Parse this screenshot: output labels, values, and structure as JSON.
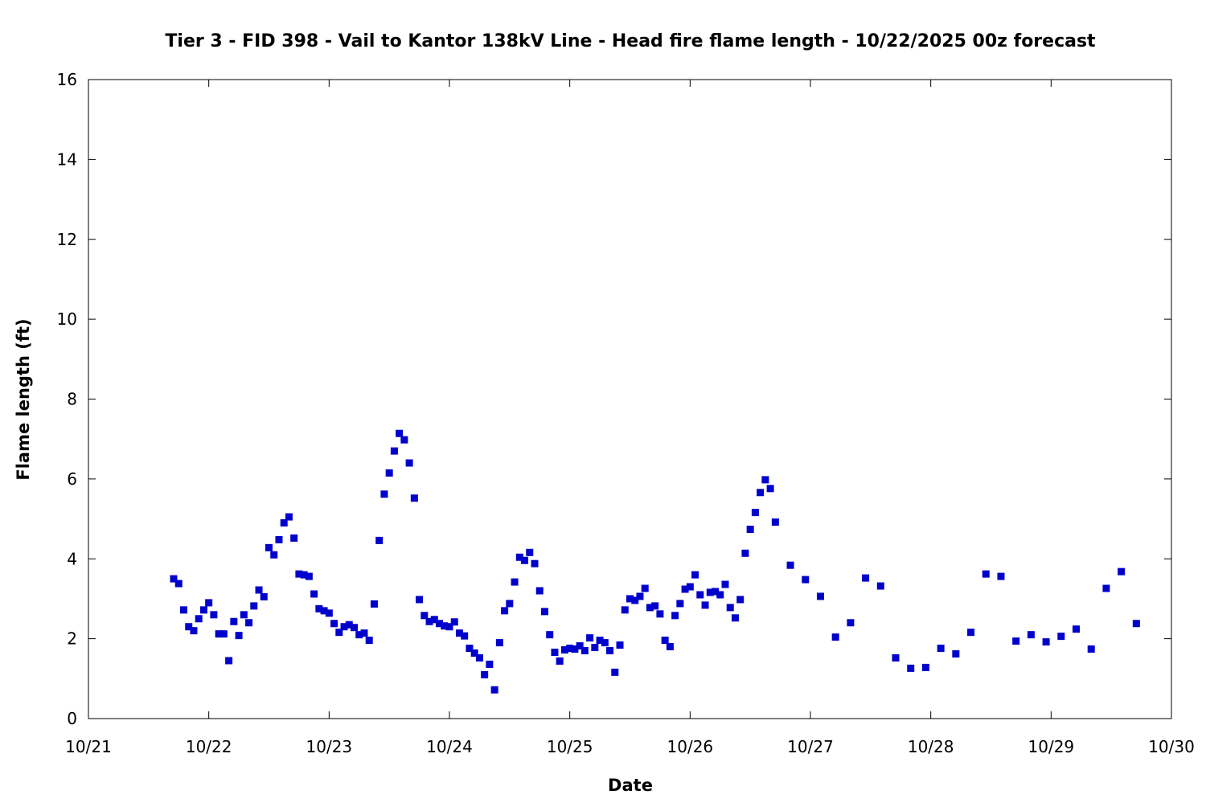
{
  "chart_data": {
    "type": "scatter",
    "title": "Tier 3 - FID 398 - Vail to Kantor 138kV Line - Head fire flame length - 10/22/2025 00z forecast",
    "xlabel": "Date",
    "ylabel": "Flame length (ft)",
    "xlim": [
      "2025-10-21 00:00",
      "2025-10-30 00:00"
    ],
    "ylim": [
      0,
      16
    ],
    "x_ticks": [
      "10/21",
      "10/22",
      "10/23",
      "10/24",
      "10/25",
      "10/26",
      "10/27",
      "10/28",
      "10/29",
      "10/30"
    ],
    "y_ticks": [
      0,
      2,
      4,
      6,
      8,
      10,
      12,
      14,
      16
    ],
    "grid": false,
    "legend": "none",
    "marker_color": "#0000cc",
    "marker": "square",
    "series": [
      {
        "points": [
          [
            "2025-10-21 17:00",
            3.5
          ],
          [
            "2025-10-21 18:00",
            3.38
          ],
          [
            "2025-10-21 19:00",
            2.72
          ],
          [
            "2025-10-21 20:00",
            2.3
          ],
          [
            "2025-10-21 21:00",
            2.2
          ],
          [
            "2025-10-21 22:00",
            2.5
          ],
          [
            "2025-10-21 23:00",
            2.72
          ],
          [
            "2025-10-22 00:00",
            2.9
          ],
          [
            "2025-10-22 01:00",
            2.6
          ],
          [
            "2025-10-22 02:00",
            2.12
          ],
          [
            "2025-10-22 03:00",
            2.12
          ],
          [
            "2025-10-22 04:00",
            1.45
          ],
          [
            "2025-10-22 05:00",
            2.43
          ],
          [
            "2025-10-22 06:00",
            2.08
          ],
          [
            "2025-10-22 07:00",
            2.6
          ],
          [
            "2025-10-22 08:00",
            2.4
          ],
          [
            "2025-10-22 09:00",
            2.82
          ],
          [
            "2025-10-22 10:00",
            3.22
          ],
          [
            "2025-10-22 11:00",
            3.05
          ],
          [
            "2025-10-22 12:00",
            4.28
          ],
          [
            "2025-10-22 13:00",
            4.1
          ],
          [
            "2025-10-22 14:00",
            4.48
          ],
          [
            "2025-10-22 15:00",
            4.9
          ],
          [
            "2025-10-22 16:00",
            5.05
          ],
          [
            "2025-10-22 17:00",
            4.52
          ],
          [
            "2025-10-22 18:00",
            3.62
          ],
          [
            "2025-10-22 19:00",
            3.6
          ],
          [
            "2025-10-22 20:00",
            3.56
          ],
          [
            "2025-10-22 21:00",
            3.12
          ],
          [
            "2025-10-22 22:00",
            2.75
          ],
          [
            "2025-10-22 23:00",
            2.7
          ],
          [
            "2025-10-23 00:00",
            2.64
          ],
          [
            "2025-10-23 01:00",
            2.38
          ],
          [
            "2025-10-23 02:00",
            2.16
          ],
          [
            "2025-10-23 03:00",
            2.3
          ],
          [
            "2025-10-23 04:00",
            2.35
          ],
          [
            "2025-10-23 05:00",
            2.28
          ],
          [
            "2025-10-23 06:00",
            2.1
          ],
          [
            "2025-10-23 07:00",
            2.14
          ],
          [
            "2025-10-23 08:00",
            1.96
          ],
          [
            "2025-10-23 09:00",
            2.87
          ],
          [
            "2025-10-23 10:00",
            4.46
          ],
          [
            "2025-10-23 11:00",
            5.62
          ],
          [
            "2025-10-23 12:00",
            6.15
          ],
          [
            "2025-10-23 13:00",
            6.7
          ],
          [
            "2025-10-23 14:00",
            7.14
          ],
          [
            "2025-10-23 15:00",
            6.98
          ],
          [
            "2025-10-23 16:00",
            6.4
          ],
          [
            "2025-10-23 17:00",
            5.52
          ],
          [
            "2025-10-23 18:00",
            2.98
          ],
          [
            "2025-10-23 19:00",
            2.58
          ],
          [
            "2025-10-23 20:00",
            2.43
          ],
          [
            "2025-10-23 21:00",
            2.48
          ],
          [
            "2025-10-23 22:00",
            2.38
          ],
          [
            "2025-10-23 23:00",
            2.32
          ],
          [
            "2025-10-24 00:00",
            2.3
          ],
          [
            "2025-10-24 01:00",
            2.42
          ],
          [
            "2025-10-24 02:00",
            2.14
          ],
          [
            "2025-10-24 03:00",
            2.07
          ],
          [
            "2025-10-24 04:00",
            1.76
          ],
          [
            "2025-10-24 05:00",
            1.64
          ],
          [
            "2025-10-24 06:00",
            1.52
          ],
          [
            "2025-10-24 07:00",
            1.1
          ],
          [
            "2025-10-24 08:00",
            1.36
          ],
          [
            "2025-10-24 09:00",
            0.72
          ],
          [
            "2025-10-24 10:00",
            1.9
          ],
          [
            "2025-10-24 11:00",
            2.7
          ],
          [
            "2025-10-24 12:00",
            2.88
          ],
          [
            "2025-10-24 13:00",
            3.42
          ],
          [
            "2025-10-24 14:00",
            4.04
          ],
          [
            "2025-10-24 15:00",
            3.96
          ],
          [
            "2025-10-24 16:00",
            4.16
          ],
          [
            "2025-10-24 17:00",
            3.88
          ],
          [
            "2025-10-24 18:00",
            3.2
          ],
          [
            "2025-10-24 19:00",
            2.68
          ],
          [
            "2025-10-24 20:00",
            2.1
          ],
          [
            "2025-10-24 21:00",
            1.66
          ],
          [
            "2025-10-24 22:00",
            1.44
          ],
          [
            "2025-10-24 23:00",
            1.72
          ],
          [
            "2025-10-25 00:00",
            1.76
          ],
          [
            "2025-10-25 01:00",
            1.74
          ],
          [
            "2025-10-25 02:00",
            1.82
          ],
          [
            "2025-10-25 03:00",
            1.7
          ],
          [
            "2025-10-25 04:00",
            2.02
          ],
          [
            "2025-10-25 05:00",
            1.78
          ],
          [
            "2025-10-25 06:00",
            1.96
          ],
          [
            "2025-10-25 07:00",
            1.9
          ],
          [
            "2025-10-25 08:00",
            1.7
          ],
          [
            "2025-10-25 09:00",
            1.16
          ],
          [
            "2025-10-25 10:00",
            1.84
          ],
          [
            "2025-10-25 11:00",
            2.72
          ],
          [
            "2025-10-25 12:00",
            3.0
          ],
          [
            "2025-10-25 13:00",
            2.96
          ],
          [
            "2025-10-25 14:00",
            3.06
          ],
          [
            "2025-10-25 15:00",
            3.26
          ],
          [
            "2025-10-25 16:00",
            2.78
          ],
          [
            "2025-10-25 17:00",
            2.82
          ],
          [
            "2025-10-25 18:00",
            2.62
          ],
          [
            "2025-10-25 19:00",
            1.96
          ],
          [
            "2025-10-25 20:00",
            1.8
          ],
          [
            "2025-10-25 21:00",
            2.58
          ],
          [
            "2025-10-25 22:00",
            2.88
          ],
          [
            "2025-10-25 23:00",
            3.24
          ],
          [
            "2025-10-26 00:00",
            3.3
          ],
          [
            "2025-10-26 01:00",
            3.6
          ],
          [
            "2025-10-26 02:00",
            3.1
          ],
          [
            "2025-10-26 03:00",
            2.84
          ],
          [
            "2025-10-26 04:00",
            3.16
          ],
          [
            "2025-10-26 05:00",
            3.18
          ],
          [
            "2025-10-26 06:00",
            3.1
          ],
          [
            "2025-10-26 07:00",
            3.36
          ],
          [
            "2025-10-26 08:00",
            2.78
          ],
          [
            "2025-10-26 09:00",
            2.52
          ],
          [
            "2025-10-26 10:00",
            2.98
          ],
          [
            "2025-10-26 11:00",
            4.14
          ],
          [
            "2025-10-26 12:00",
            4.74
          ],
          [
            "2025-10-26 13:00",
            5.16
          ],
          [
            "2025-10-26 14:00",
            5.66
          ],
          [
            "2025-10-26 15:00",
            5.98
          ],
          [
            "2025-10-26 16:00",
            5.76
          ],
          [
            "2025-10-26 17:00",
            4.92
          ],
          [
            "2025-10-26 20:00",
            3.84
          ],
          [
            "2025-10-26 23:00",
            3.48
          ],
          [
            "2025-10-27 02:00",
            3.06
          ],
          [
            "2025-10-27 05:00",
            2.04
          ],
          [
            "2025-10-27 08:00",
            2.4
          ],
          [
            "2025-10-27 11:00",
            3.52
          ],
          [
            "2025-10-27 14:00",
            3.32
          ],
          [
            "2025-10-27 17:00",
            1.52
          ],
          [
            "2025-10-27 20:00",
            1.26
          ],
          [
            "2025-10-27 23:00",
            1.28
          ],
          [
            "2025-10-28 02:00",
            1.76
          ],
          [
            "2025-10-28 05:00",
            1.62
          ],
          [
            "2025-10-28 08:00",
            2.16
          ],
          [
            "2025-10-28 11:00",
            3.62
          ],
          [
            "2025-10-28 14:00",
            3.56
          ],
          [
            "2025-10-28 17:00",
            1.94
          ],
          [
            "2025-10-28 20:00",
            2.1
          ],
          [
            "2025-10-28 23:00",
            1.92
          ],
          [
            "2025-10-29 02:00",
            2.06
          ],
          [
            "2025-10-29 05:00",
            2.24
          ],
          [
            "2025-10-29 08:00",
            1.74
          ],
          [
            "2025-10-29 11:00",
            3.26
          ],
          [
            "2025-10-29 14:00",
            3.68
          ],
          [
            "2025-10-29 17:00",
            2.38
          ]
        ]
      }
    ]
  }
}
